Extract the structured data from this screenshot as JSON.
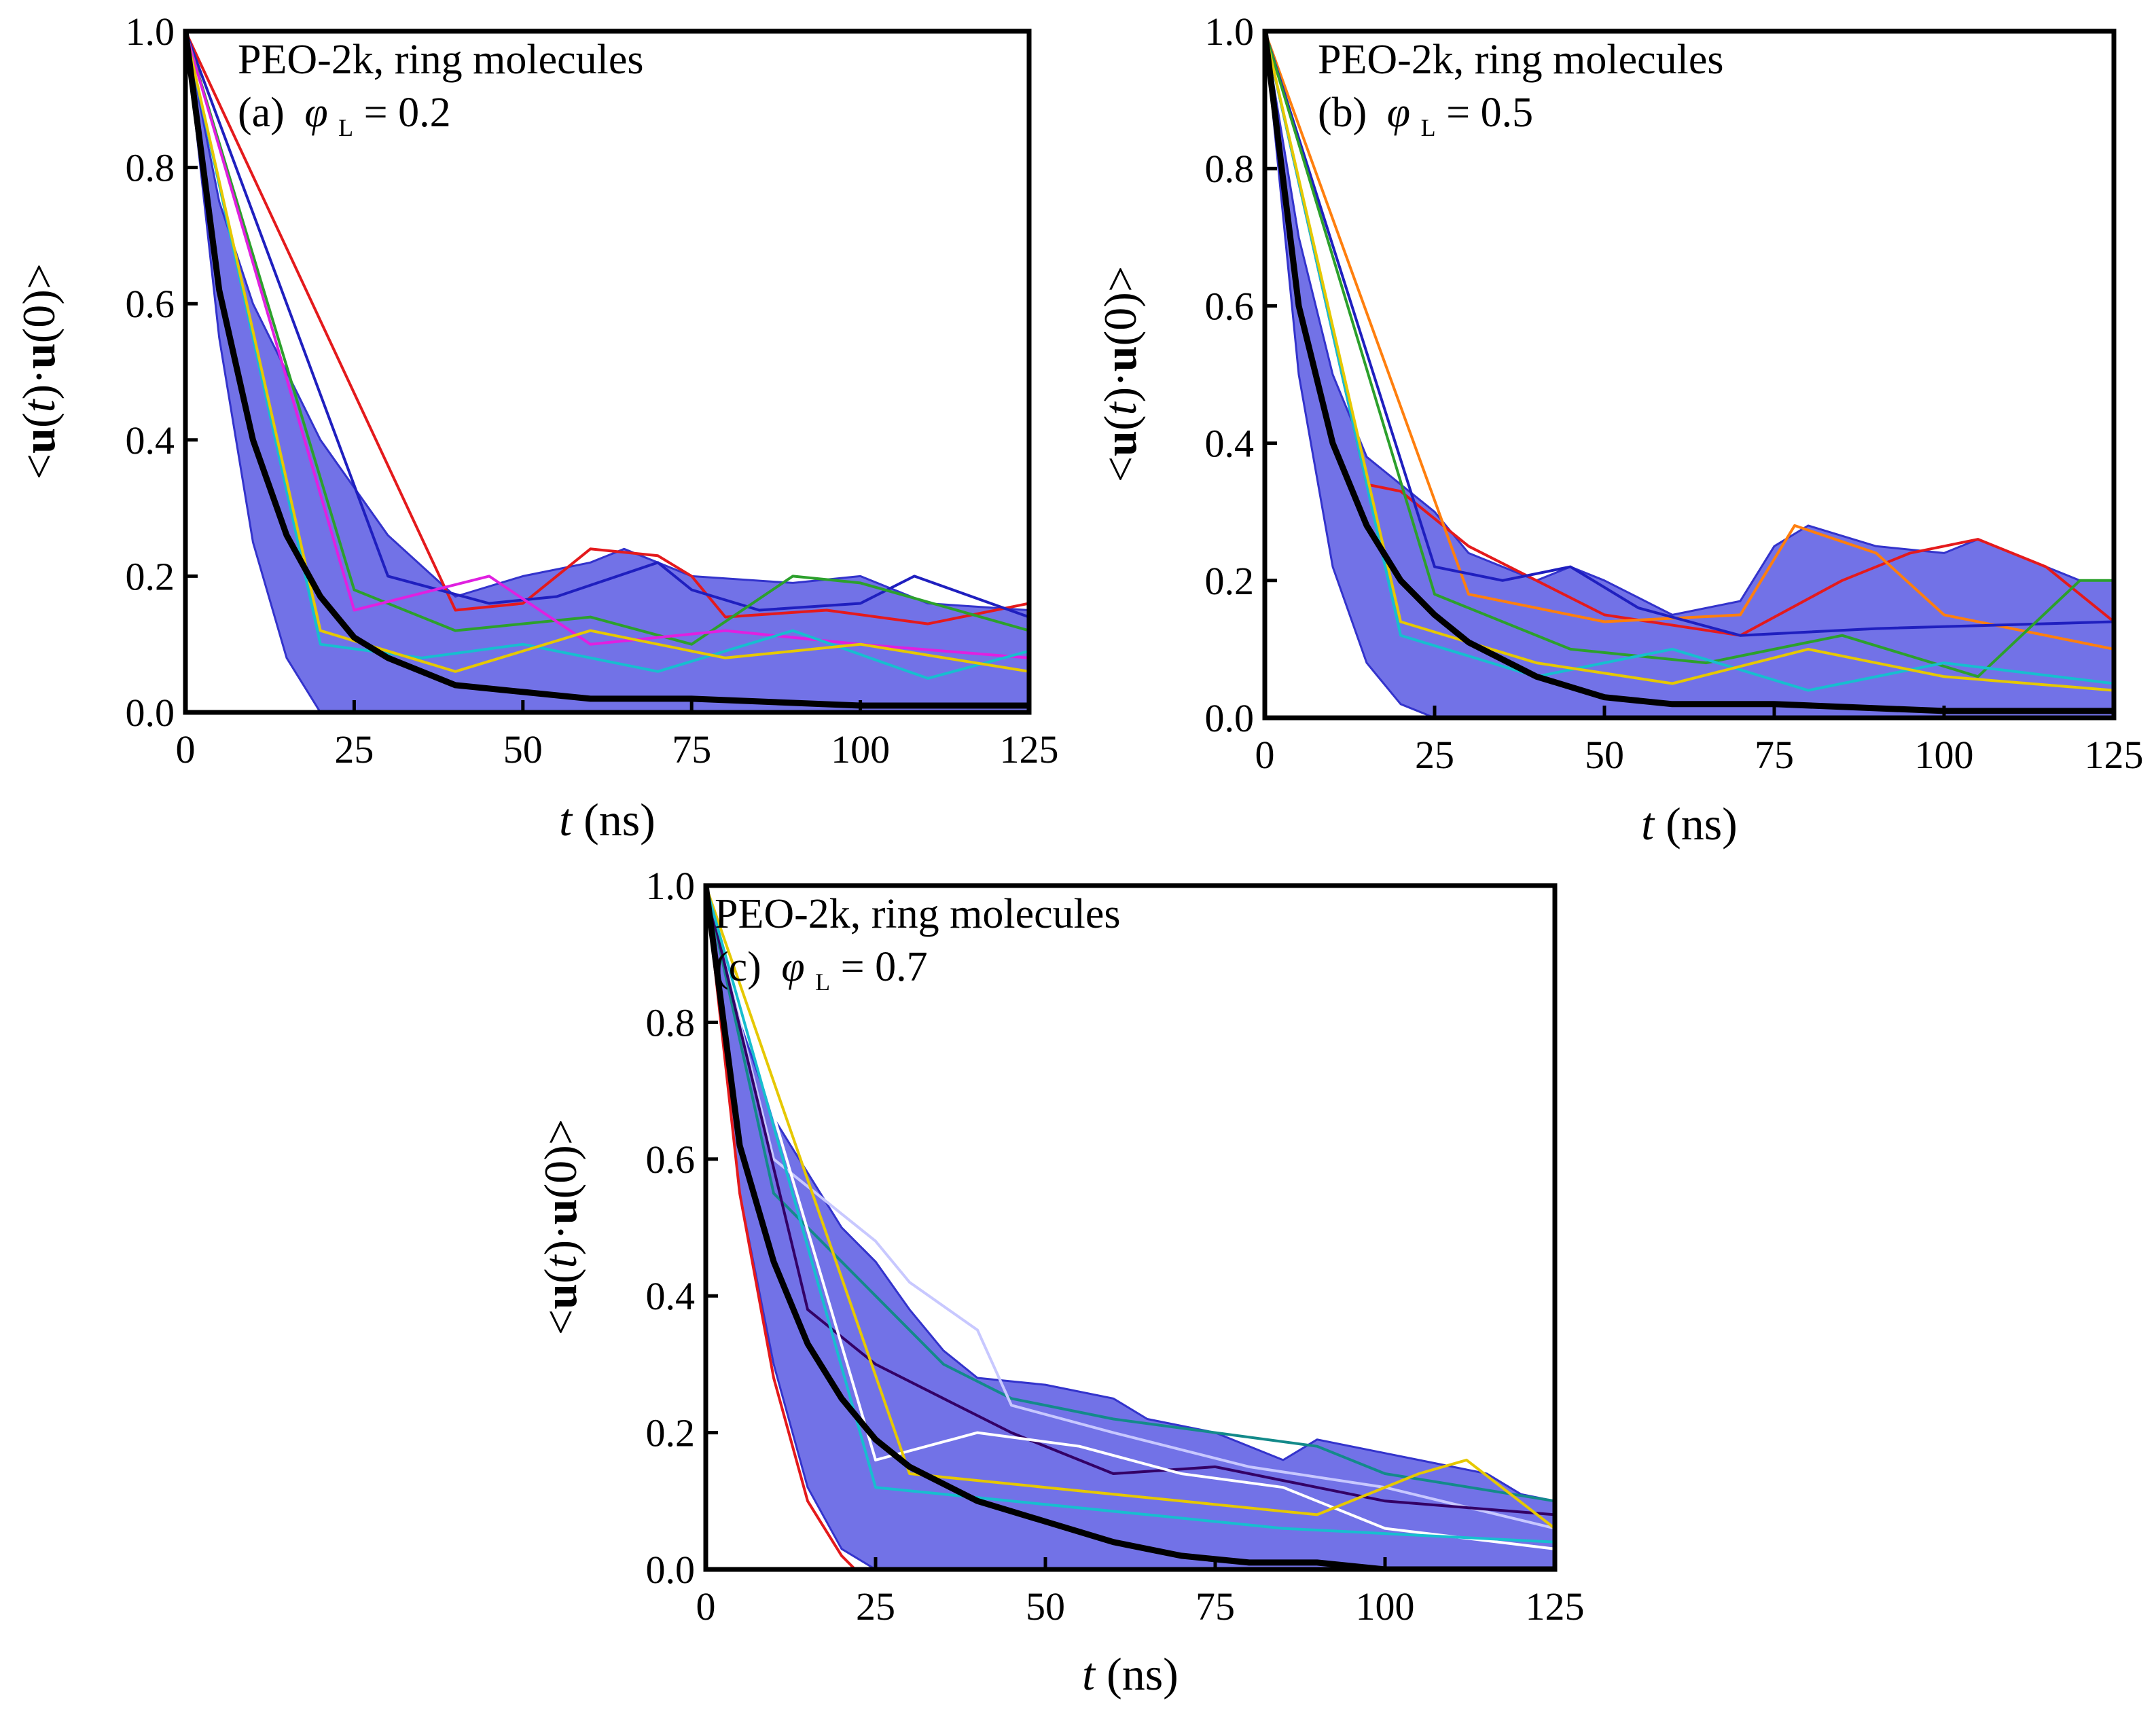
{
  "figure": {
    "panel_a": {
      "label": "(a)",
      "title": "PEO-2k, ring molecules",
      "phi_symbol": "φ",
      "phi_sub": "L",
      "phi_value": "= 0.2"
    },
    "panel_b": {
      "label": "(b)",
      "title": "PEO-2k, ring molecules",
      "phi_symbol": "φ",
      "phi_sub": "L",
      "phi_value": "= 0.5"
    },
    "panel_c": {
      "label": "(c)",
      "title": "PEO-2k, ring molecules",
      "phi_symbol": "φ",
      "phi_sub": "L",
      "phi_value": "= 0.7"
    },
    "xlabel": {
      "var": "t",
      "unit": " (ns)"
    },
    "ylabel": {
      "open": "<",
      "u1": "u",
      "p1": "(",
      "t": "t",
      "p2": ")·",
      "u2": "u",
      "p3": "(0)",
      "close": ">"
    },
    "xticks": [
      "0",
      "25",
      "50",
      "75",
      "100",
      "125"
    ],
    "yticks": [
      "0.0",
      "0.2",
      "0.4",
      "0.6",
      "0.8",
      "1.0"
    ]
  },
  "chart_data": [
    {
      "type": "line",
      "id": "a",
      "title": "PEO-2k, ring molecules (a) φL = 0.2",
      "xlabel": "t (ns)",
      "ylabel": "<u(t)·u(0)>",
      "xlim": [
        0,
        125
      ],
      "ylim": [
        0,
        1.0
      ],
      "series": [
        {
          "name": "average",
          "color": "#000000",
          "x": [
            0,
            5,
            10,
            15,
            20,
            25,
            30,
            40,
            50,
            60,
            75,
            100,
            125
          ],
          "y": [
            1.0,
            0.62,
            0.4,
            0.26,
            0.17,
            0.11,
            0.08,
            0.04,
            0.03,
            0.02,
            0.02,
            0.01,
            0.01
          ]
        },
        {
          "name": "envelope-upper",
          "color": "#3333cc",
          "x": [
            0,
            5,
            10,
            20,
            30,
            40,
            50,
            60,
            65,
            75,
            90,
            100,
            110,
            125
          ],
          "y": [
            1.0,
            0.75,
            0.6,
            0.4,
            0.26,
            0.17,
            0.2,
            0.22,
            0.24,
            0.2,
            0.19,
            0.2,
            0.16,
            0.15
          ]
        },
        {
          "name": "envelope-lower",
          "color": "#3333cc",
          "x": [
            0,
            5,
            10,
            15,
            20,
            25,
            50,
            75,
            100,
            125
          ],
          "y": [
            1.0,
            0.55,
            0.25,
            0.08,
            0.0,
            0.0,
            0.0,
            0.0,
            0.0,
            0.0
          ]
        },
        {
          "name": "red",
          "color": "#e41a1c",
          "x": [
            0,
            40,
            50,
            55,
            60,
            70,
            75,
            80,
            95,
            110,
            125
          ],
          "y": [
            1.0,
            0.15,
            0.16,
            0.2,
            0.24,
            0.23,
            0.2,
            0.14,
            0.15,
            0.13,
            0.16
          ]
        },
        {
          "name": "darkblue",
          "color": "#1f1fbf",
          "x": [
            0,
            30,
            45,
            55,
            70,
            75,
            85,
            100,
            108,
            125
          ],
          "y": [
            1.0,
            0.2,
            0.16,
            0.17,
            0.22,
            0.18,
            0.15,
            0.16,
            0.2,
            0.14
          ]
        },
        {
          "name": "green",
          "color": "#2ca02c",
          "x": [
            0,
            25,
            40,
            60,
            75,
            90,
            100,
            125
          ],
          "y": [
            1.0,
            0.18,
            0.12,
            0.14,
            0.1,
            0.2,
            0.19,
            0.12
          ]
        },
        {
          "name": "magenta",
          "color": "#e020e0",
          "x": [
            0,
            25,
            45,
            60,
            80,
            100,
            125
          ],
          "y": [
            1.0,
            0.15,
            0.2,
            0.1,
            0.12,
            0.1,
            0.08
          ]
        },
        {
          "name": "cyan",
          "color": "#17becf",
          "x": [
            0,
            20,
            35,
            50,
            70,
            90,
            110,
            125
          ],
          "y": [
            1.0,
            0.1,
            0.08,
            0.1,
            0.06,
            0.12,
            0.05,
            0.09
          ]
        },
        {
          "name": "yellow",
          "color": "#e6c800",
          "x": [
            0,
            20,
            40,
            60,
            80,
            100,
            125
          ],
          "y": [
            1.0,
            0.12,
            0.06,
            0.12,
            0.08,
            0.1,
            0.06
          ]
        }
      ]
    },
    {
      "type": "line",
      "id": "b",
      "title": "PEO-2k, ring molecules (b) φL = 0.5",
      "xlabel": "t (ns)",
      "ylabel": "<u(t)·u(0)>",
      "xlim": [
        0,
        125
      ],
      "ylim": [
        0,
        1.0
      ],
      "series": [
        {
          "name": "average",
          "color": "#000000",
          "x": [
            0,
            5,
            10,
            15,
            20,
            25,
            30,
            40,
            50,
            60,
            75,
            100,
            125
          ],
          "y": [
            1.0,
            0.6,
            0.4,
            0.28,
            0.2,
            0.15,
            0.11,
            0.06,
            0.03,
            0.02,
            0.02,
            0.01,
            0.01
          ]
        },
        {
          "name": "envelope-upper",
          "color": "#3333cc",
          "x": [
            0,
            5,
            10,
            15,
            20,
            25,
            30,
            40,
            45,
            50,
            60,
            70,
            75,
            80,
            90,
            100,
            105,
            110,
            120,
            125
          ],
          "y": [
            1.0,
            0.7,
            0.5,
            0.38,
            0.34,
            0.3,
            0.24,
            0.2,
            0.22,
            0.2,
            0.15,
            0.17,
            0.25,
            0.28,
            0.25,
            0.24,
            0.26,
            0.24,
            0.2,
            0.2
          ]
        },
        {
          "name": "envelope-lower",
          "color": "#3333cc",
          "x": [
            0,
            5,
            10,
            15,
            20,
            25,
            50,
            75,
            100,
            125
          ],
          "y": [
            1.0,
            0.5,
            0.22,
            0.08,
            0.02,
            0.0,
            0.0,
            0.0,
            0.0,
            0.0
          ]
        },
        {
          "name": "red",
          "color": "#e41a1c",
          "x": [
            0,
            15,
            20,
            30,
            50,
            70,
            85,
            95,
            105,
            115,
            125
          ],
          "y": [
            1.0,
            0.34,
            0.33,
            0.25,
            0.15,
            0.12,
            0.2,
            0.24,
            0.26,
            0.22,
            0.14
          ]
        },
        {
          "name": "orange",
          "color": "#ff7f0e",
          "x": [
            0,
            30,
            50,
            70,
            78,
            90,
            100,
            125
          ],
          "y": [
            1.0,
            0.18,
            0.14,
            0.15,
            0.28,
            0.24,
            0.15,
            0.1
          ]
        },
        {
          "name": "darkblue",
          "color": "#1f1fbf",
          "x": [
            0,
            25,
            35,
            45,
            55,
            70,
            90,
            125
          ],
          "y": [
            1.0,
            0.22,
            0.2,
            0.22,
            0.16,
            0.12,
            0.13,
            0.14
          ]
        },
        {
          "name": "green",
          "color": "#2ca02c",
          "x": [
            0,
            25,
            45,
            65,
            85,
            105,
            120,
            125
          ],
          "y": [
            1.0,
            0.18,
            0.1,
            0.08,
            0.12,
            0.06,
            0.2,
            0.2
          ]
        },
        {
          "name": "cyan",
          "color": "#17becf",
          "x": [
            0,
            20,
            40,
            60,
            80,
            100,
            125
          ],
          "y": [
            1.0,
            0.12,
            0.06,
            0.1,
            0.04,
            0.08,
            0.05
          ]
        },
        {
          "name": "yellow",
          "color": "#e6c800",
          "x": [
            0,
            20,
            40,
            60,
            80,
            100,
            125
          ],
          "y": [
            1.0,
            0.14,
            0.08,
            0.05,
            0.1,
            0.06,
            0.04
          ]
        }
      ]
    },
    {
      "type": "line",
      "id": "c",
      "title": "PEO-2k, ring molecules (c) φL = 0.7",
      "xlabel": "t (ns)",
      "ylabel": "<u(t)·u(0)>",
      "xlim": [
        0,
        125
      ],
      "ylim": [
        0,
        1.0
      ],
      "series": [
        {
          "name": "average",
          "color": "#000000",
          "x": [
            0,
            5,
            10,
            15,
            20,
            25,
            30,
            40,
            50,
            60,
            70,
            80,
            90,
            100,
            125
          ],
          "y": [
            1.0,
            0.62,
            0.45,
            0.33,
            0.25,
            0.19,
            0.15,
            0.1,
            0.07,
            0.04,
            0.02,
            0.01,
            0.01,
            0.0,
            0.0
          ]
        },
        {
          "name": "envelope-upper",
          "color": "#3333cc",
          "x": [
            0,
            5,
            10,
            15,
            20,
            25,
            30,
            35,
            40,
            50,
            60,
            65,
            75,
            85,
            90,
            100,
            105,
            115,
            120,
            125
          ],
          "y": [
            1.0,
            0.8,
            0.66,
            0.58,
            0.5,
            0.45,
            0.38,
            0.32,
            0.28,
            0.27,
            0.25,
            0.22,
            0.2,
            0.16,
            0.19,
            0.17,
            0.16,
            0.14,
            0.11,
            0.1
          ]
        },
        {
          "name": "envelope-lower",
          "color": "#3333cc",
          "x": [
            0,
            5,
            10,
            15,
            20,
            25,
            50,
            75,
            100,
            125
          ],
          "y": [
            1.0,
            0.55,
            0.3,
            0.12,
            0.03,
            0.0,
            0.0,
            0.0,
            0.0,
            0.0
          ]
        },
        {
          "name": "red",
          "color": "#e41a1c",
          "x": [
            0,
            5,
            10,
            15,
            20,
            22
          ],
          "y": [
            1.0,
            0.55,
            0.28,
            0.1,
            0.02,
            0.0
          ]
        },
        {
          "name": "teal",
          "color": "#138a8a",
          "x": [
            0,
            10,
            20,
            25,
            35,
            45,
            60,
            75,
            90,
            100,
            125
          ],
          "y": [
            1.0,
            0.55,
            0.45,
            0.4,
            0.3,
            0.25,
            0.22,
            0.2,
            0.18,
            0.14,
            0.1
          ]
        },
        {
          "name": "lavender",
          "color": "#c8c8ff",
          "x": [
            0,
            10,
            20,
            25,
            30,
            40,
            45,
            60,
            80,
            100,
            125
          ],
          "y": [
            1.0,
            0.6,
            0.52,
            0.48,
            0.42,
            0.35,
            0.24,
            0.2,
            0.15,
            0.12,
            0.06
          ]
        },
        {
          "name": "darkpurple",
          "color": "#330066",
          "x": [
            0,
            15,
            25,
            35,
            45,
            60,
            75,
            90,
            100,
            125
          ],
          "y": [
            1.0,
            0.38,
            0.3,
            0.25,
            0.2,
            0.14,
            0.15,
            0.12,
            0.1,
            0.08
          ]
        },
        {
          "name": "white",
          "color": "#ffffff",
          "x": [
            0,
            25,
            40,
            55,
            70,
            85,
            100,
            125
          ],
          "y": [
            1.0,
            0.16,
            0.2,
            0.18,
            0.14,
            0.12,
            0.06,
            0.03
          ]
        },
        {
          "name": "yellow",
          "color": "#e6c800",
          "x": [
            0,
            30,
            50,
            70,
            90,
            105,
            112,
            125
          ],
          "y": [
            1.0,
            0.14,
            0.12,
            0.1,
            0.08,
            0.14,
            0.16,
            0.06
          ]
        },
        {
          "name": "cyan",
          "color": "#17becf",
          "x": [
            0,
            25,
            45,
            65,
            85,
            105,
            125
          ],
          "y": [
            1.0,
            0.12,
            0.1,
            0.08,
            0.06,
            0.05,
            0.04
          ]
        }
      ]
    }
  ]
}
